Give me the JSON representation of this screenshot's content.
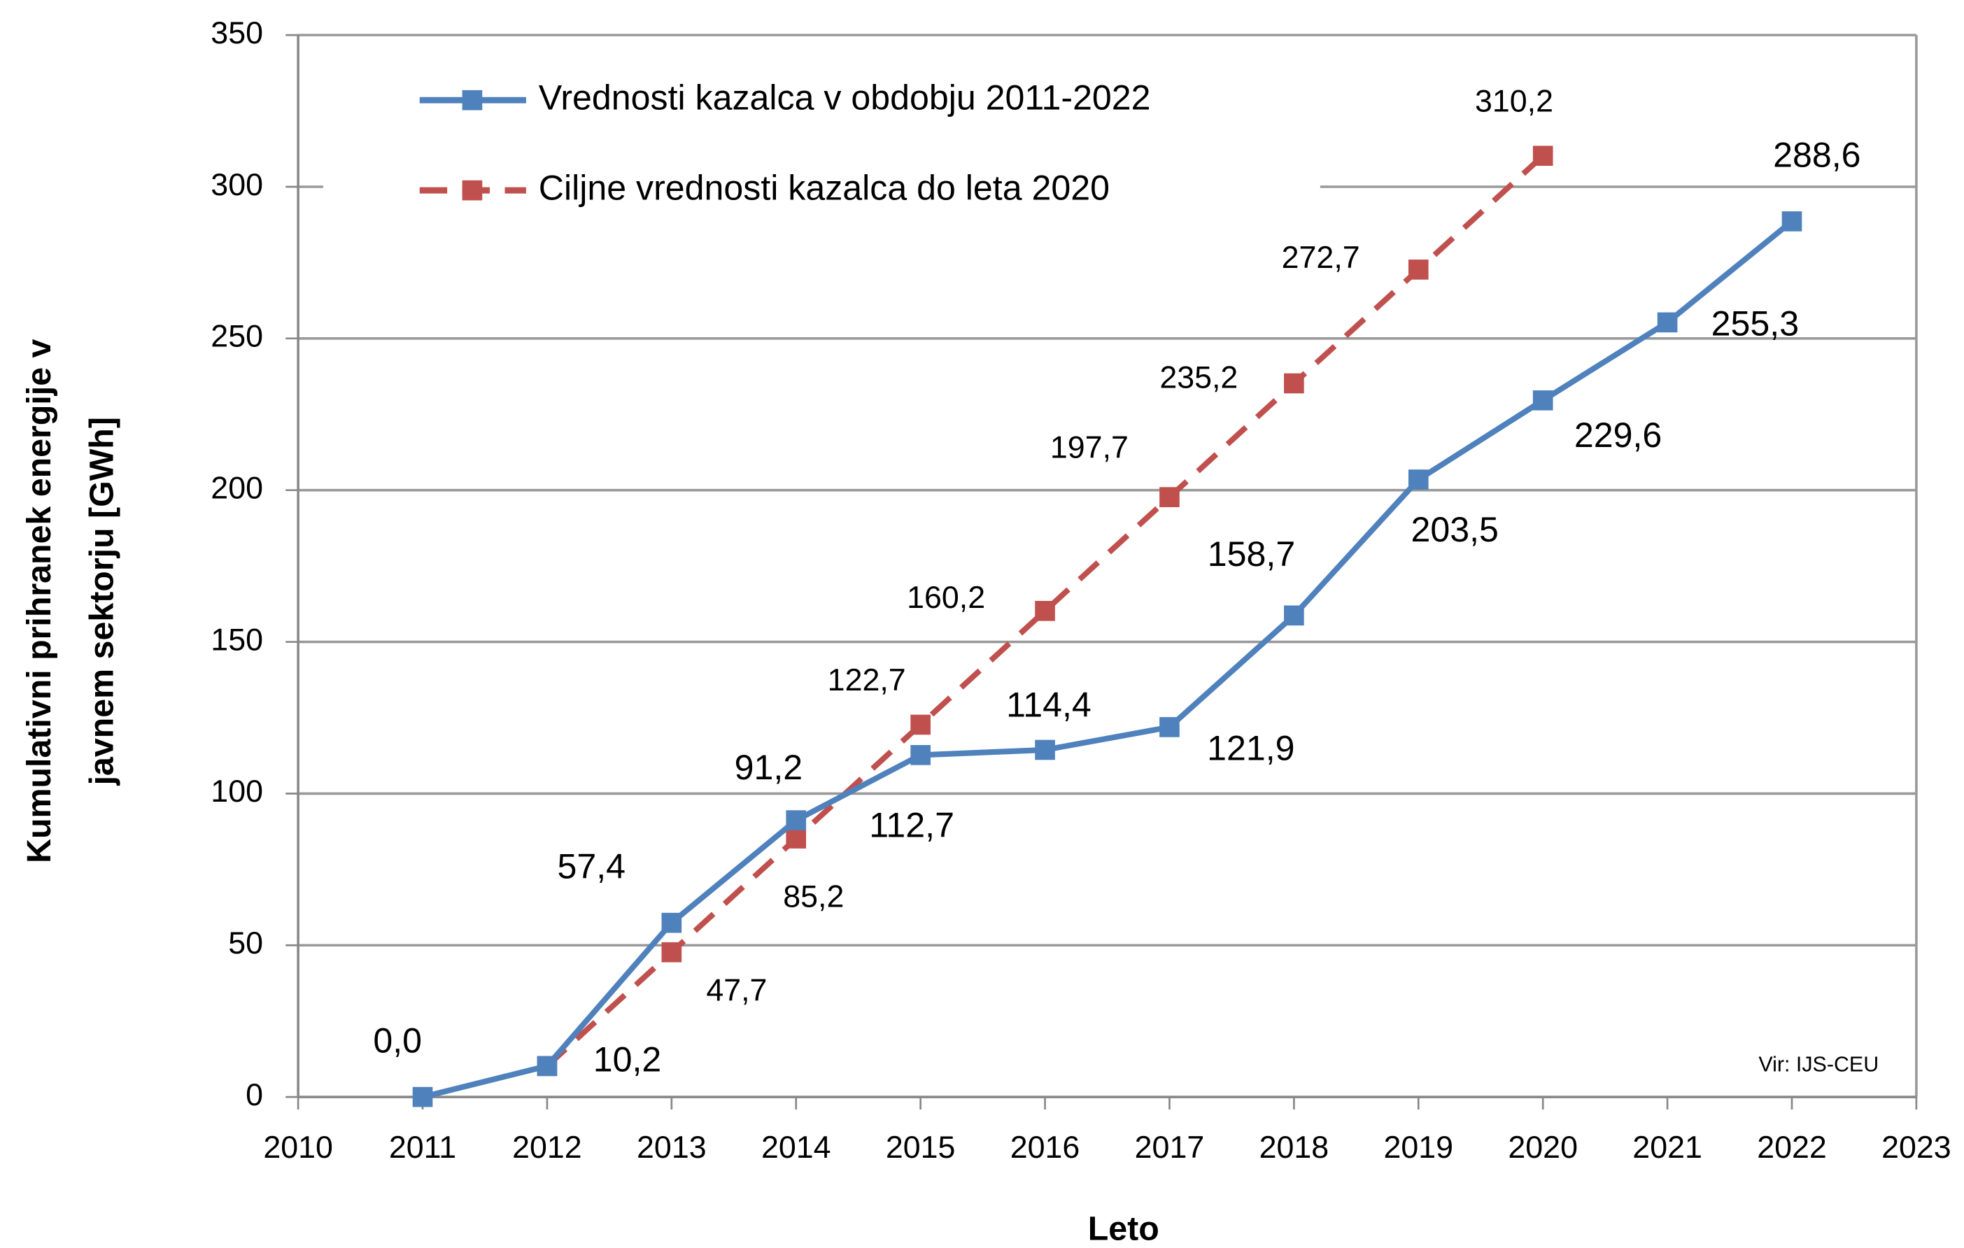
{
  "chart_data": {
    "type": "line",
    "xlabel": "Leto",
    "ylabel": [
      "Kumulativni prihranek energije v",
      "javnem sektorju [GWh]"
    ],
    "annotation": "Vir: IJS-CEU",
    "xlim": [
      2010,
      2023
    ],
    "xticks": [
      2010,
      2011,
      2012,
      2013,
      2014,
      2015,
      2016,
      2017,
      2018,
      2019,
      2020,
      2021,
      2022,
      2023
    ],
    "ylim": [
      0,
      350
    ],
    "yticks": [
      0,
      50,
      100,
      150,
      200,
      250,
      300,
      350
    ],
    "grid": true,
    "legend": "top-left",
    "series": [
      {
        "name": "Vrednosti kazalca v obdobju 2011-2022",
        "color": "#4f81bd",
        "dashed": false,
        "x": [
          2011,
          2012,
          2013,
          2014,
          2015,
          2016,
          2017,
          2018,
          2019,
          2020,
          2021,
          2022
        ],
        "values": [
          0.0,
          10.2,
          57.4,
          91.2,
          112.7,
          114.4,
          121.9,
          158.7,
          203.5,
          229.6,
          255.3,
          288.6
        ],
        "value_labels": [
          "0,0",
          "10,2",
          "57,4",
          "91,2",
          "112,7",
          "114,4",
          "121,9",
          "158,7",
          "203,5",
          "229,6",
          "255,3",
          "288,6"
        ]
      },
      {
        "name": "Ciljne vrednosti kazalca do leta 2020",
        "color": "#c0504d",
        "dashed": true,
        "x": [
          2012,
          2013,
          2014,
          2015,
          2016,
          2017,
          2018,
          2019,
          2020
        ],
        "values": [
          10.2,
          47.7,
          85.2,
          122.7,
          160.2,
          197.7,
          235.2,
          272.7,
          310.2
        ],
        "value_labels": [
          null,
          "47,7",
          "85,2",
          "122,7",
          "160,2",
          "197,7",
          "235,2",
          "272,7",
          "310,2"
        ]
      }
    ]
  }
}
